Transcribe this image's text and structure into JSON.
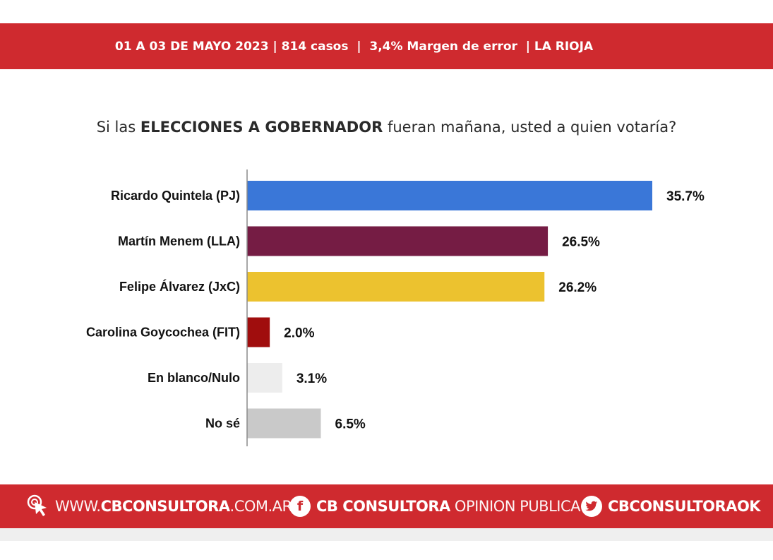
{
  "header": {
    "info": "01 A 03 DE MAYO 2023 | 814 casos  |  3,4% Margen de error  | LA RIOJA"
  },
  "question": {
    "prefix": "Si las ",
    "highlight": "ELECCIONES A GOBERNADOR",
    "suffix": " fueran mañana, usted a quien votaría?"
  },
  "chart_data": {
    "type": "bar",
    "orientation": "horizontal",
    "title": "Si las ELECCIONES A GOBERNADOR fueran mañana, usted a quien votaría?",
    "categories": [
      "Ricardo Quintela (PJ)",
      "Martín Menem (LLA)",
      "Felipe Álvarez (JxC)",
      "Carolina Goycochea (FIT)",
      "En blanco/Nulo",
      "No sé"
    ],
    "values": [
      35.7,
      26.5,
      26.2,
      2.0,
      3.1,
      6.5
    ],
    "labels": [
      "35.7%",
      "26.5%",
      "26.2%",
      "2.0%",
      "3.1%",
      "6.5%"
    ],
    "colors": [
      "#3a77d8",
      "#751c44",
      "#ecc22f",
      "#a00d0d",
      "#ededed",
      "#c9c9c9"
    ],
    "xlim": [
      0,
      36
    ],
    "grid": false,
    "legend": "none"
  },
  "footer": {
    "website_light": "WWW.",
    "website_bold": "CBCONSULTORA",
    "website_tail": ".COM.AR",
    "facebook_icon": "f",
    "facebook_bold": "CB CONSULTORA",
    "facebook_light": " OPINION PUBLICA",
    "twitter_handle": "CBCONSULTORAOK",
    "icons": [
      "cursor-click-icon",
      "facebook-icon",
      "twitter-icon"
    ]
  }
}
